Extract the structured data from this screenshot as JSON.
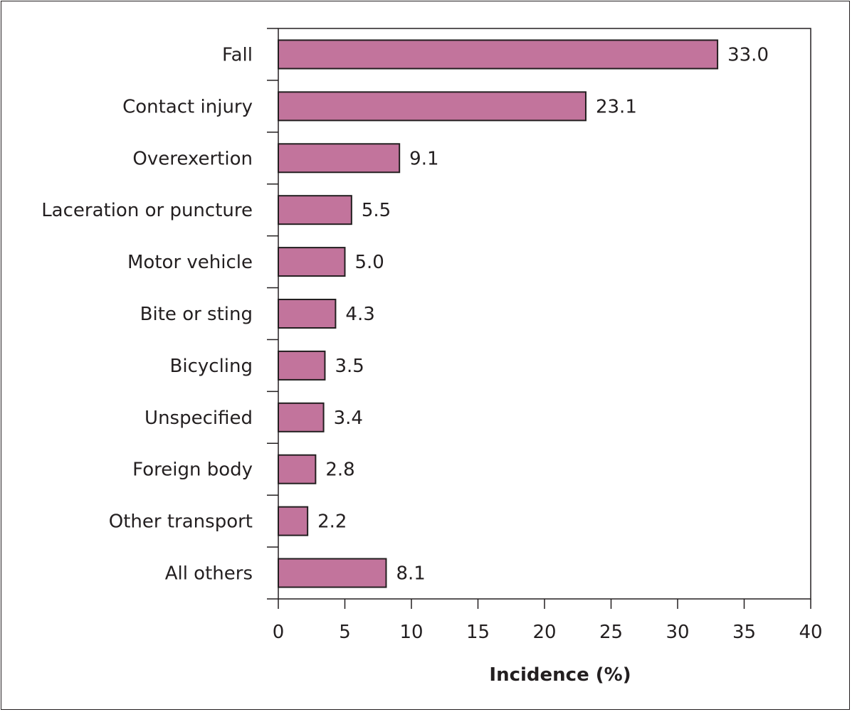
{
  "chart_data": {
    "type": "bar",
    "orientation": "horizontal",
    "categories": [
      "Fall",
      "Contact injury",
      "Overexertion",
      "Laceration or puncture",
      "Motor vehicle",
      "Bite or sting",
      "Bicycling",
      "Unspecified",
      "Foreign body",
      "Other transport",
      "All others"
    ],
    "values": [
      33.0,
      23.1,
      9.1,
      5.5,
      5.0,
      4.3,
      3.5,
      3.4,
      2.8,
      2.2,
      8.1
    ],
    "value_labels": [
      "33.0",
      "23.1",
      "9.1",
      "5.5",
      "5.0",
      "4.3",
      "3.5",
      "3.4",
      "2.8",
      "2.2",
      "8.1"
    ],
    "xlabel": "Incidence (%)",
    "ylabel": "",
    "xlim": [
      0,
      40
    ],
    "xticks": [
      "0",
      "5",
      "10",
      "15",
      "20",
      "25",
      "30",
      "35",
      "40"
    ],
    "grid": false,
    "bar_color": "#c2749c",
    "bar_edge_color": "#231f20"
  }
}
